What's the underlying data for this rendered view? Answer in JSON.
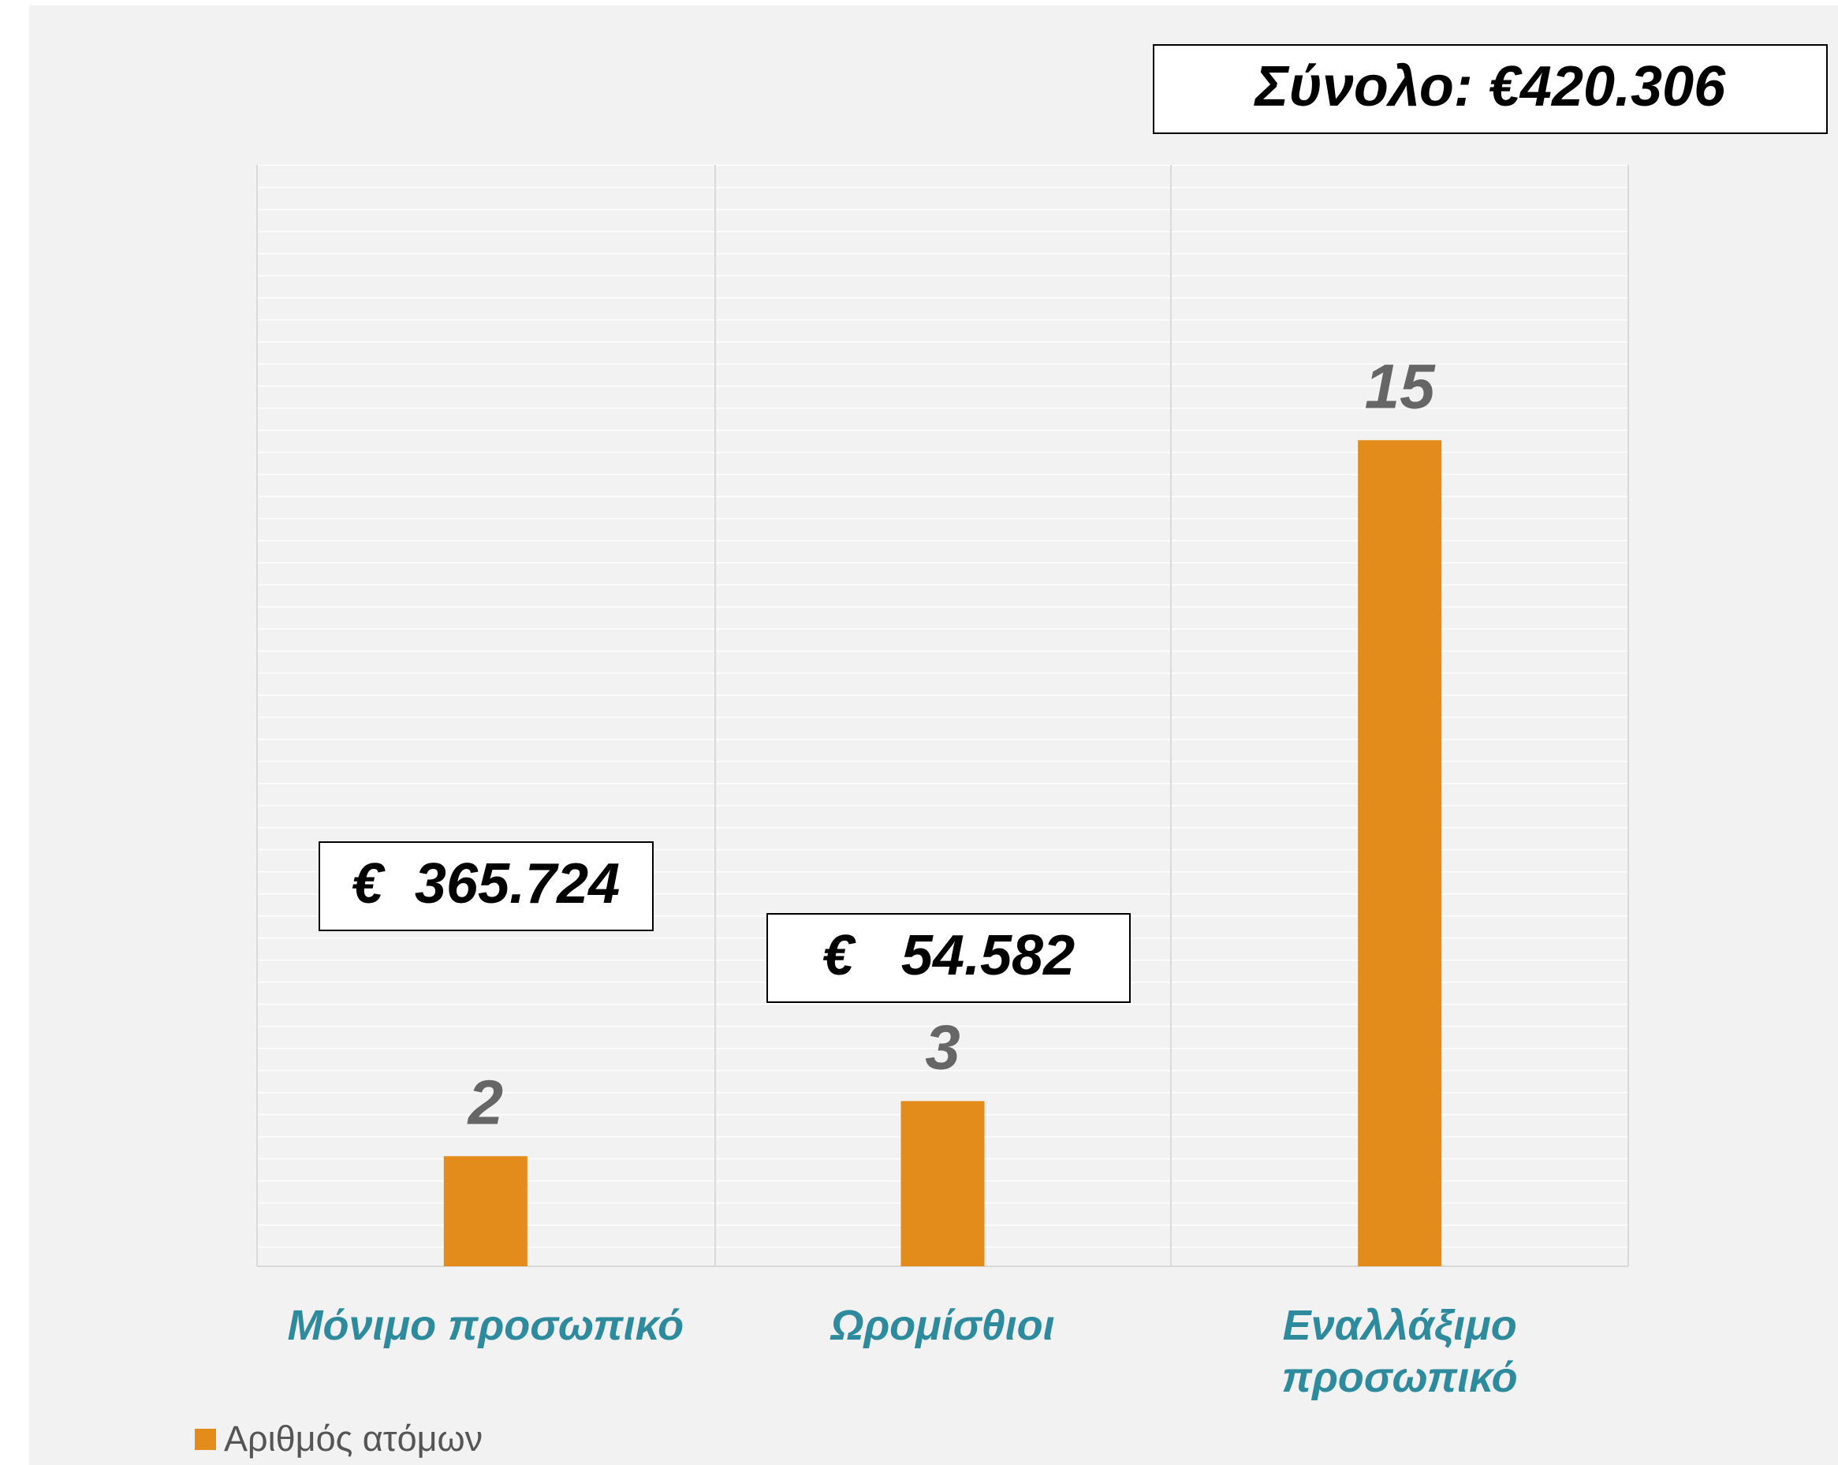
{
  "chart_data": {
    "type": "bar",
    "categories": [
      "Μόνιμο προσωπικό",
      "Ωρομίσθιοι",
      "Εναλλάξιμο προσωπικό"
    ],
    "series": [
      {
        "name": "Αριθμός ατόμων",
        "color": "#e38c1c",
        "values": [
          2,
          3,
          15
        ]
      }
    ],
    "ylim": [
      0,
      20
    ],
    "annotations": [
      "Σύνολο: €420.306",
      "€  365.724",
      "€   54.582"
    ],
    "legend": "bottom-left"
  }
}
